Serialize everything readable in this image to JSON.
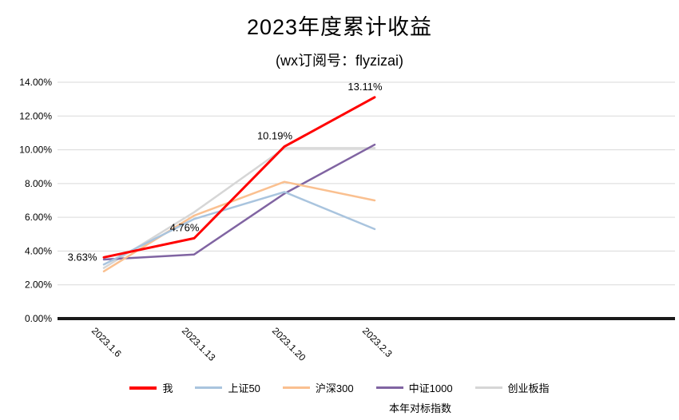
{
  "title": "2023年度累计收益",
  "subtitle": "(wx订阅号：flyzizai)",
  "benchmark_note": "本年对标指数",
  "chart_data": {
    "type": "line",
    "categories": [
      "2023.1.6",
      "2023.1.13",
      "2023.1.20",
      "2023.2.3"
    ],
    "series": [
      {
        "name": "我",
        "color": "#FF0000",
        "width": 3,
        "values": [
          3.63,
          4.76,
          10.19,
          13.11
        ],
        "labels": [
          "3.63%",
          "4.76%",
          "10.19%",
          "13.11%"
        ]
      },
      {
        "name": "上证50",
        "color": "#A9C4DE",
        "width": 2.5,
        "values": [
          3.2,
          5.9,
          7.5,
          5.3
        ]
      },
      {
        "name": "沪深300",
        "color": "#FAC090",
        "width": 2.5,
        "values": [
          2.8,
          6.1,
          8.1,
          7.0
        ]
      },
      {
        "name": "中证1000",
        "color": "#8064A2",
        "width": 2.5,
        "values": [
          3.5,
          3.8,
          7.4,
          10.3
        ]
      },
      {
        "name": "创业板指",
        "color": "#D6D6D6",
        "width": 2.5,
        "values": [
          3.0,
          6.3,
          10.1,
          10.1
        ]
      }
    ],
    "ylim": [
      0,
      14
    ],
    "ytick_step": 2,
    "ytick_format": "percent2",
    "ytick_labels": [
      "0.00%",
      "2.00%",
      "4.00%",
      "6.00%",
      "8.00%",
      "10.00%",
      "12.00%",
      "14.00%"
    ],
    "grid": true,
    "gridline_color": "#D9D9D9",
    "axis_line_color": "#1a1a1a",
    "legend_position": "bottom",
    "data_labels_series": "我"
  }
}
